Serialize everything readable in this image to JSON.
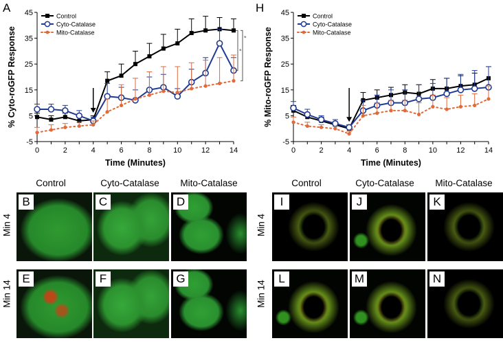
{
  "panel_letters": {
    "A": "A",
    "H": "H"
  },
  "chart_data": [
    {
      "type": "line",
      "panel": "A",
      "title": "",
      "xlabel": "Time (Minutes)",
      "ylabel": "% Cyto-roGFP Response",
      "xlim": [
        0,
        14
      ],
      "ylim": [
        -5,
        45
      ],
      "xticks": [
        0,
        2,
        4,
        6,
        8,
        10,
        12,
        14
      ],
      "yticks": [
        -5,
        5,
        15,
        25,
        35,
        45
      ],
      "x": [
        0,
        1,
        2,
        3,
        4,
        5,
        6,
        7,
        8,
        9,
        10,
        11,
        12,
        13,
        14
      ],
      "arrow_at_x": 4,
      "significance": [
        "*",
        "*"
      ],
      "series": [
        {
          "name": "Control",
          "color": "#000000",
          "marker": "square",
          "dashed": false,
          "values": [
            4.5,
            3.5,
            4.5,
            3.0,
            3.5,
            18.5,
            20.5,
            25,
            28,
            31,
            33,
            37,
            38,
            38.5,
            38
          ],
          "errors": [
            1.5,
            1.5,
            1.5,
            1.5,
            1.5,
            3.5,
            4.5,
            5.0,
            5.0,
            5.5,
            5.5,
            5.5,
            5.5,
            4.5,
            4.5
          ]
        },
        {
          "name": "Cyto-Catalase",
          "color": "#1f3a93",
          "marker": "circle",
          "dashed": false,
          "values": [
            7.5,
            7.5,
            7.0,
            5.0,
            3.0,
            12.5,
            12,
            11,
            15,
            16,
            12.5,
            18,
            21.5,
            33,
            22.5
          ],
          "errors": [
            2.0,
            2.0,
            2.0,
            2.0,
            1.5,
            5.0,
            4.0,
            4.0,
            5.0,
            5.0,
            3.0,
            5.0,
            6.0,
            5.5,
            5.0
          ]
        },
        {
          "name": "Mito-Catalase",
          "color": "#e06a3a",
          "marker": "dot",
          "dashed": true,
          "values": [
            -1.5,
            -0.5,
            0.5,
            1.0,
            1.5,
            6.5,
            9.0,
            11.5,
            13.0,
            14.5,
            14.0,
            15.5,
            16.5,
            17.5,
            18.5
          ],
          "errors": [
            2.0,
            2.0,
            1.5,
            1.5,
            1.5,
            5.0,
            8.0,
            8.0,
            9.0,
            9.5,
            10.0,
            10.0,
            10.0,
            10.0,
            10.0
          ]
        }
      ]
    },
    {
      "type": "line",
      "panel": "H",
      "title": "",
      "xlabel": "Time (Minutes)",
      "ylabel": "% Mito-roGFP Response",
      "xlim": [
        0,
        14
      ],
      "ylim": [
        -5,
        45
      ],
      "xticks": [
        0,
        2,
        4,
        6,
        8,
        10,
        12,
        14
      ],
      "yticks": [
        -5,
        5,
        15,
        25,
        35,
        45
      ],
      "x": [
        0,
        1,
        2,
        3,
        4,
        5,
        6,
        7,
        8,
        9,
        10,
        11,
        12,
        13,
        14
      ],
      "arrow_at_x": 4,
      "significance": [],
      "series": [
        {
          "name": "Control",
          "color": "#000000",
          "marker": "square",
          "dashed": false,
          "values": [
            7.0,
            4.5,
            3.0,
            1.5,
            0.0,
            11.0,
            12.0,
            13.0,
            14.0,
            13.5,
            15.5,
            15.5,
            16.5,
            17.0,
            19.5
          ],
          "errors": [
            2.0,
            1.5,
            1.5,
            1.0,
            1.0,
            3.0,
            3.0,
            3.0,
            3.0,
            3.5,
            3.5,
            4.0,
            4.0,
            4.5,
            4.5
          ]
        },
        {
          "name": "Cyto-Catalase",
          "color": "#1f3a93",
          "marker": "circle",
          "dashed": false,
          "values": [
            8.0,
            5.5,
            3.5,
            2.0,
            0.5,
            7.0,
            9.0,
            10.0,
            10.0,
            11.5,
            12.0,
            13.5,
            15.0,
            15.5,
            16.0
          ],
          "errors": [
            2.5,
            2.0,
            1.5,
            1.5,
            1.0,
            4.0,
            4.0,
            5.0,
            5.0,
            5.5,
            5.5,
            6.0,
            6.0,
            7.0,
            8.0
          ]
        },
        {
          "name": "Mito-Catalase",
          "color": "#e06a3a",
          "marker": "dot",
          "dashed": true,
          "values": [
            2.5,
            1.0,
            0.5,
            0.0,
            -2.0,
            5.0,
            6.0,
            7.0,
            7.0,
            5.5,
            8.5,
            7.5,
            8.5,
            9.0,
            11.5
          ],
          "errors": [
            2.0,
            1.5,
            1.0,
            1.0,
            1.0,
            4.0,
            4.0,
            4.0,
            4.0,
            4.5,
            4.5,
            4.5,
            4.5,
            4.5,
            5.0
          ]
        }
      ]
    }
  ],
  "images_left": {
    "columns": [
      "Control",
      "Cyto-Catalase",
      "Mito-Catalase"
    ],
    "rows": [
      "Min 4",
      "Min 14"
    ],
    "tiles": [
      "B",
      "C",
      "D",
      "E",
      "F",
      "G"
    ]
  },
  "images_right": {
    "columns": [
      "Control",
      "Cyto-Catalase",
      "Mito-Catalase"
    ],
    "rows": [
      "Min 4",
      "Min 14"
    ],
    "tiles": [
      "I",
      "J",
      "K",
      "L",
      "M",
      "N"
    ]
  }
}
